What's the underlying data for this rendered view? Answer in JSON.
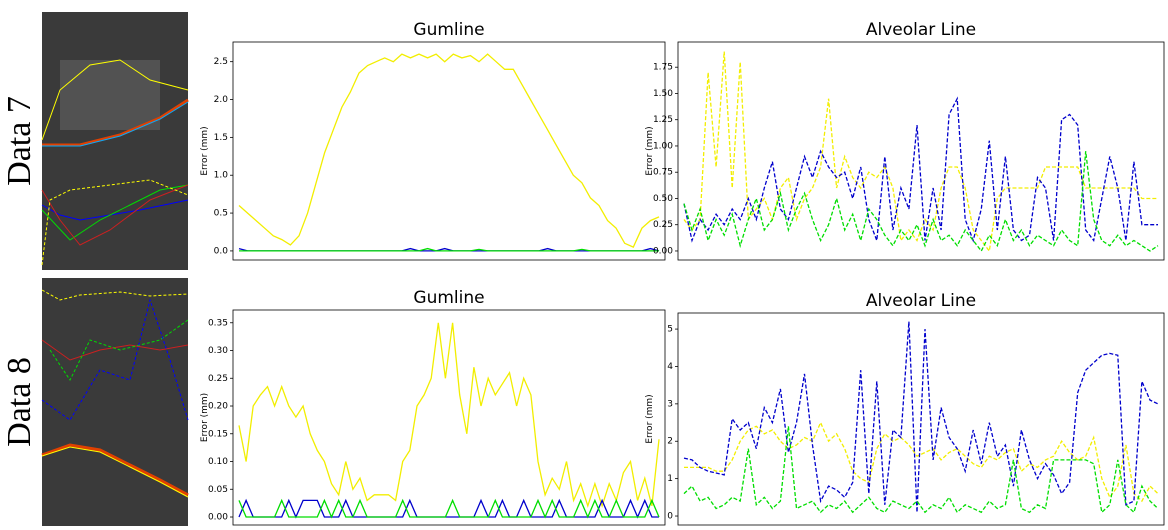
{
  "row_labels": [
    "Data 7",
    "Data 8"
  ],
  "chart_data": [
    {
      "type": "line",
      "title": "Gumline",
      "ylabel": "Error (mm)",
      "linestyle": "solid",
      "ylim": [
        -0.12,
        2.76
      ],
      "yticks": [
        {
          "value": 0,
          "label": "0.0"
        },
        0.5,
        {
          "value": 1,
          "label": "1.0"
        },
        1.5,
        {
          "value": 2,
          "label": "2.0"
        },
        2.5
      ],
      "series": [
        {
          "color": "#f2ee00",
          "values": [
            0.6,
            0.5,
            0.4,
            0.3,
            0.2,
            0.15,
            0.08,
            0.2,
            0.5,
            0.9,
            1.3,
            1.6,
            1.9,
            2.1,
            2.35,
            2.45,
            2.5,
            2.55,
            2.5,
            2.6,
            2.55,
            2.6,
            2.55,
            2.6,
            2.5,
            2.6,
            2.55,
            2.58,
            2.5,
            2.6,
            2.5,
            2.4,
            2.4,
            2.2,
            2.0,
            1.8,
            1.6,
            1.4,
            1.2,
            1.0,
            0.9,
            0.7,
            0.6,
            0.4,
            0.3,
            0.1,
            0.05,
            0.3,
            0.4,
            0.45
          ]
        },
        {
          "color": "#0000cc",
          "values": [
            0.03,
            0,
            0,
            0,
            0,
            0,
            0,
            0,
            0,
            0,
            0,
            0,
            0,
            0,
            0,
            0,
            0,
            0,
            0,
            0,
            0.03,
            0,
            0,
            0,
            0.03,
            0,
            0,
            0,
            0,
            0,
            0,
            0,
            0,
            0,
            0,
            0,
            0.03,
            0,
            0,
            0,
            0,
            0,
            0,
            0,
            0,
            0,
            0,
            0,
            0.03,
            0
          ]
        },
        {
          "color": "#00dd00",
          "values": [
            0,
            0,
            0,
            0,
            0,
            0,
            0,
            0,
            0,
            0,
            0,
            0,
            0,
            0,
            0,
            0,
            0,
            0,
            0,
            0,
            0,
            0,
            0.03,
            0,
            0,
            0,
            0,
            0,
            0.02,
            0,
            0,
            0,
            0,
            0,
            0,
            0,
            0,
            0,
            0,
            0,
            0.02,
            0,
            0,
            0,
            0,
            0,
            0,
            0,
            0,
            0
          ]
        }
      ]
    },
    {
      "type": "line",
      "title": "Alveolar Line",
      "ylabel": "Error (mm)",
      "linestyle": "dashed",
      "ylim": [
        -0.086,
        1.99
      ],
      "yticks": [
        {
          "value": 0,
          "label": "0.00"
        },
        0.25,
        {
          "value": 0.5,
          "label": "0.50"
        },
        0.75,
        {
          "value": 1,
          "label": "1.00"
        },
        1.25,
        {
          "value": 1.5,
          "label": "1.50"
        },
        1.75
      ],
      "series": [
        {
          "color": "#f2ee00",
          "values": [
            0.3,
            0.2,
            0.3,
            1.7,
            0.8,
            1.9,
            0.6,
            1.8,
            0.3,
            0.4,
            0.5,
            0.3,
            0.6,
            0.7,
            0.3,
            0.5,
            0.6,
            0.8,
            1.45,
            0.6,
            0.9,
            0.7,
            0.6,
            0.75,
            0.7,
            0.8,
            0.6,
            0.1,
            0.2,
            0.1,
            0.3,
            0.2,
            0.6,
            0.8,
            0.8,
            0.6,
            0.2,
            0.1,
            0.0,
            0.5,
            0.6,
            0.6,
            0.6,
            0.6,
            0.6,
            0.8,
            0.8,
            0.8,
            0.8,
            0.8,
            0.6,
            0.6,
            0.6,
            0.6,
            0.6,
            0.6,
            0.6,
            0.5,
            0.5,
            0.5
          ]
        },
        {
          "color": "#0000cc",
          "values": [
            0.45,
            0.1,
            0.3,
            0.2,
            0.35,
            0.25,
            0.4,
            0.3,
            0.5,
            0.3,
            0.6,
            0.85,
            0.4,
            0.3,
            0.6,
            0.9,
            0.7,
            0.95,
            0.8,
            0.7,
            0.75,
            0.5,
            0.8,
            0.3,
            0.1,
            0.9,
            0.2,
            0.6,
            0.4,
            1.2,
            0.1,
            0.6,
            0.2,
            1.3,
            1.45,
            0.3,
            0.1,
            0.4,
            1.05,
            0.2,
            0.9,
            0.2,
            0.1,
            0.15,
            0.7,
            0.6,
            0.1,
            1.25,
            1.3,
            1.2,
            0.2,
            0.1,
            0.5,
            0.9,
            0.6,
            0.1,
            0.85,
            0.25,
            0.25,
            0.25
          ]
        },
        {
          "color": "#00dd00",
          "values": [
            0.45,
            0.2,
            0.4,
            0.1,
            0.3,
            0.15,
            0.35,
            0.05,
            0.3,
            0.5,
            0.2,
            0.3,
            0.55,
            0.2,
            0.4,
            0.55,
            0.3,
            0.1,
            0.25,
            0.5,
            0.2,
            0.35,
            0.1,
            0.4,
            0.3,
            0.15,
            0.05,
            0.2,
            0.1,
            0.25,
            0.05,
            0.3,
            0.1,
            0.15,
            0.05,
            0.2,
            0.1,
            0.0,
            0.15,
            0.05,
            0.3,
            0.1,
            0.2,
            0.05,
            0.15,
            0.1,
            0.05,
            0.2,
            0.1,
            0.05,
            0.95,
            0.3,
            0.1,
            0.05,
            0.15,
            0.05,
            0.1,
            0.05,
            0.0,
            0.05
          ]
        }
      ]
    },
    {
      "type": "line",
      "title": "Gumline",
      "ylabel": "Error (mm)",
      "linestyle": "solid",
      "ylim": [
        -0.0144,
        0.373
      ],
      "yticks": [
        {
          "value": 0,
          "label": "0.00"
        },
        0.05,
        {
          "value": 0.1,
          "label": "0.10"
        },
        0.15,
        {
          "value": 0.2,
          "label": "0.20"
        },
        0.25,
        {
          "value": 0.3,
          "label": "0.30"
        },
        0.35
      ],
      "series": [
        {
          "color": "#f2ee00",
          "values": [
            0.165,
            0.1,
            0.2,
            0.22,
            0.235,
            0.2,
            0.235,
            0.2,
            0.18,
            0.2,
            0.15,
            0.12,
            0.1,
            0.06,
            0.04,
            0.1,
            0.05,
            0.07,
            0.03,
            0.04,
            0.04,
            0.04,
            0.03,
            0.1,
            0.12,
            0.2,
            0.22,
            0.25,
            0.35,
            0.25,
            0.35,
            0.22,
            0.15,
            0.27,
            0.2,
            0.25,
            0.22,
            0.24,
            0.26,
            0.2,
            0.25,
            0.22,
            0.1,
            0.04,
            0.07,
            0.05,
            0.1,
            0.03,
            0.06,
            0.02,
            0.06,
            0.02,
            0.06,
            0.03,
            0.08,
            0.1,
            0.03,
            0.07,
            0.02,
            0.14
          ]
        },
        {
          "color": "#0000cc",
          "values": [
            0,
            0.03,
            0,
            0,
            0,
            0,
            0,
            0.03,
            0,
            0.03,
            0.03,
            0.03,
            0,
            0,
            0,
            0.03,
            0,
            0,
            0,
            0,
            0,
            0,
            0,
            0,
            0.03,
            0,
            0,
            0,
            0,
            0,
            0,
            0,
            0,
            0,
            0.03,
            0,
            0,
            0.03,
            0,
            0,
            0.03,
            0,
            0,
            0,
            0,
            0.03,
            0,
            0,
            0,
            0,
            0,
            0.03,
            0,
            0,
            0,
            0.03,
            0,
            0.03,
            0,
            0
          ]
        },
        {
          "color": "#00dd00",
          "values": [
            0.03,
            0,
            0,
            0,
            0,
            0,
            0.03,
            0,
            0,
            0,
            0,
            0,
            0.03,
            0,
            0.03,
            0,
            0,
            0.03,
            0,
            0,
            0,
            0,
            0,
            0.03,
            0,
            0,
            0,
            0,
            0,
            0,
            0.03,
            0,
            0,
            0,
            0,
            0,
            0.03,
            0,
            0,
            0,
            0,
            0,
            0.03,
            0,
            0.03,
            0,
            0,
            0,
            0.03,
            0,
            0.03,
            0,
            0,
            0.03,
            0,
            0,
            0,
            0,
            0.03,
            0
          ]
        }
      ]
    },
    {
      "type": "line",
      "title": "Alveolar Line",
      "ylabel": "Error (mm)",
      "linestyle": "dashed",
      "ylim": [
        -0.24,
        5.43
      ],
      "yticks": [
        0,
        1,
        2,
        3,
        4,
        5
      ],
      "series": [
        {
          "color": "#f2ee00",
          "values": [
            1.3,
            1.3,
            1.3,
            1.3,
            1.2,
            1.2,
            1.5,
            2.0,
            2.3,
            2.4,
            2.2,
            2.3,
            2.0,
            1.8,
            1.9,
            2.1,
            2.0,
            2.5,
            2.0,
            2.2,
            1.8,
            1.2,
            1.0,
            0.9,
            1.8,
            2.2,
            2.0,
            2.1,
            1.9,
            1.6,
            1.7,
            1.8,
            1.5,
            1.7,
            1.8,
            1.6,
            1.4,
            1.3,
            1.6,
            1.5,
            1.7,
            1.8,
            1.2,
            1.4,
            1.3,
            1.5,
            1.6,
            2.0,
            1.7,
            1.5,
            1.6,
            2.1,
            1.0,
            0.5,
            0.8,
            1.9,
            0.6,
            0.4,
            0.8,
            0.6
          ]
        },
        {
          "color": "#0000cc",
          "values": [
            1.55,
            1.5,
            1.3,
            1.2,
            1.15,
            1.1,
            2.6,
            2.3,
            2.5,
            1.8,
            2.9,
            2.5,
            3.4,
            1.7,
            2.5,
            3.8,
            1.9,
            0.4,
            0.8,
            0.7,
            0.5,
            0.9,
            3.9,
            0.6,
            3.6,
            0.3,
            2.3,
            2.1,
            5.2,
            0.1,
            5.0,
            1.5,
            2.9,
            2.1,
            1.8,
            1.2,
            2.3,
            1.4,
            2.5,
            1.6,
            1.9,
            0.8,
            2.3,
            1.5,
            1.0,
            1.4,
            1.1,
            0.6,
            0.9,
            3.3,
            3.9,
            4.1,
            4.3,
            4.35,
            4.3,
            0.3,
            0.4,
            3.6,
            3.1,
            3.0
          ]
        },
        {
          "color": "#00dd00",
          "values": [
            0.6,
            0.8,
            0.4,
            0.5,
            0.2,
            0.3,
            0.5,
            0.4,
            1.8,
            0.3,
            0.5,
            0.2,
            0.4,
            2.4,
            0.2,
            0.3,
            0.4,
            0.1,
            0.3,
            0.2,
            0.4,
            0.1,
            0.3,
            0.5,
            0.2,
            0.1,
            0.4,
            0.3,
            0.2,
            0.4,
            0.1,
            0.3,
            0.2,
            0.5,
            0.1,
            0.3,
            0.2,
            0.1,
            0.4,
            0.2,
            0.3,
            1.5,
            0.2,
            0.1,
            0.3,
            0.2,
            1.5,
            1.5,
            1.5,
            1.5,
            1.5,
            1.4,
            0.1,
            0.3,
            1.5,
            0.3,
            0.1,
            0.8,
            0.4,
            0.2
          ]
        }
      ]
    }
  ]
}
